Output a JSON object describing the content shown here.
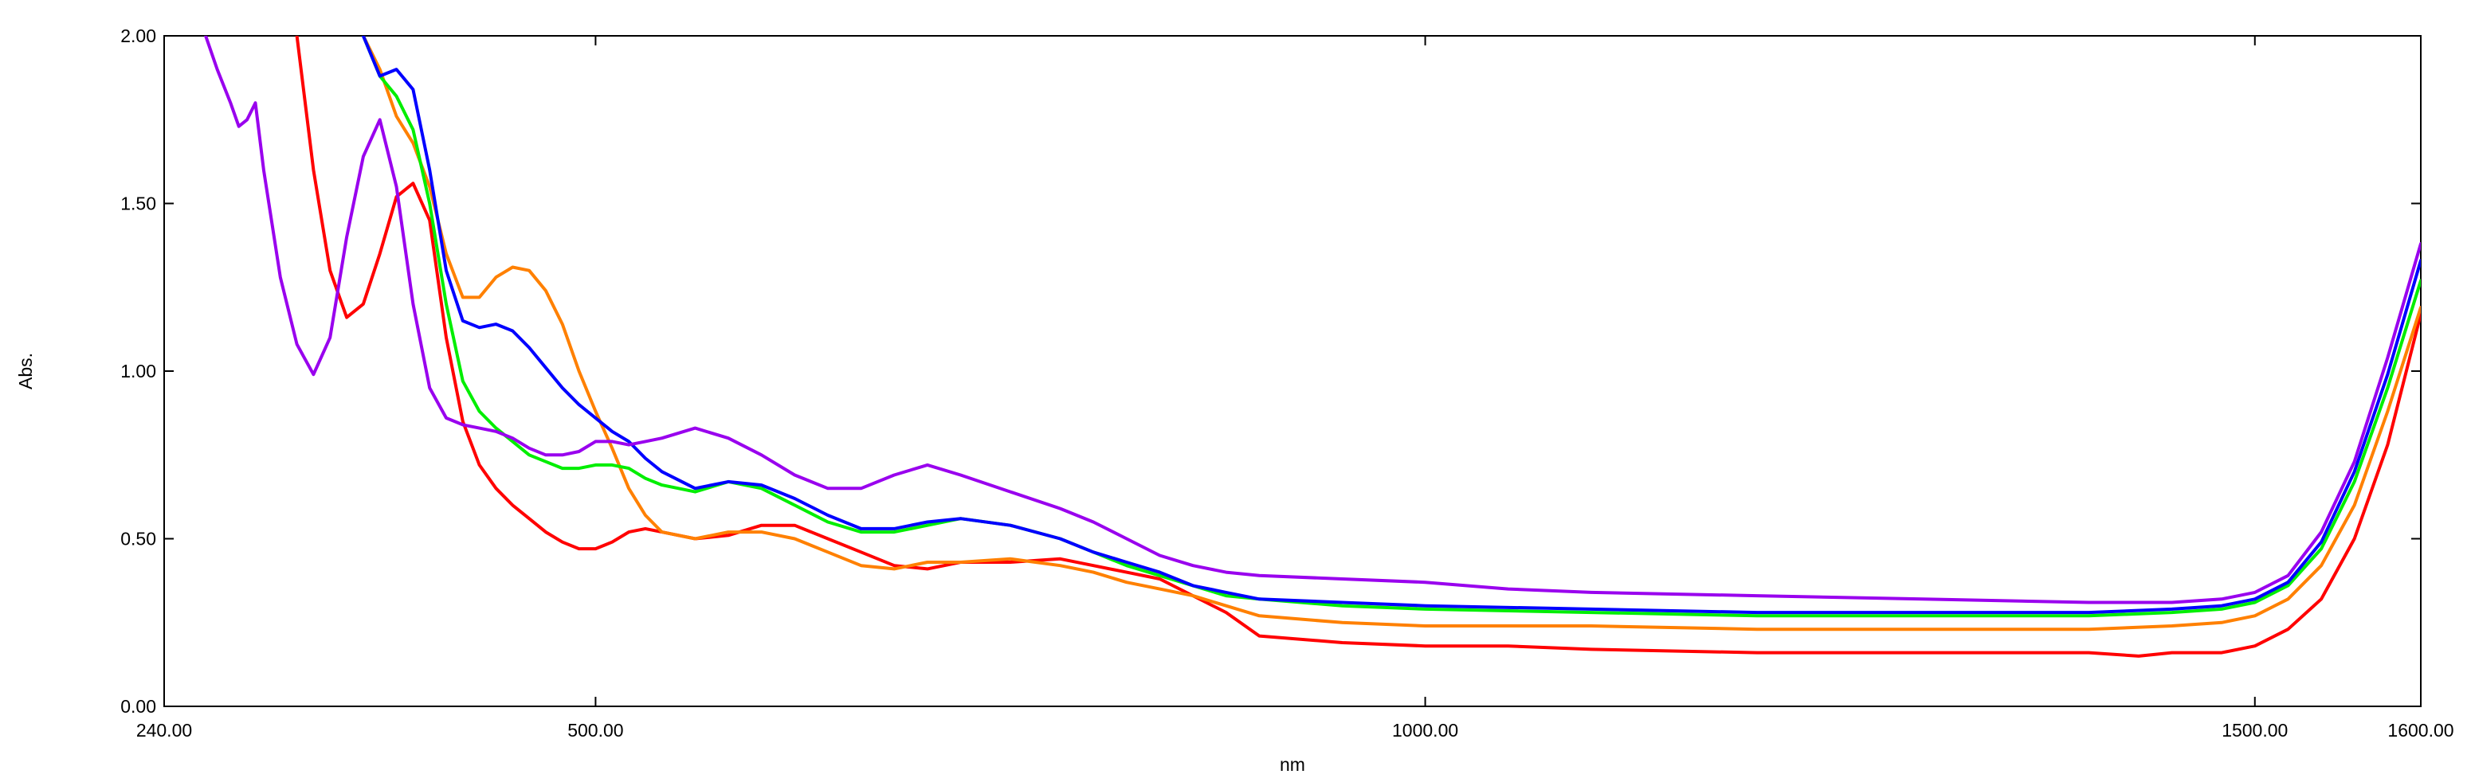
{
  "chart_data": {
    "type": "line",
    "title": "",
    "xlabel": "nm",
    "ylabel": "Abs.",
    "xlim": [
      240,
      1600
    ],
    "ylim": [
      0,
      2
    ],
    "grid": false,
    "legend": "none",
    "x_ticks": [
      240,
      500,
      1000,
      1500,
      1600
    ],
    "x_tick_labels": [
      "240.00",
      "500.00",
      "1000.00",
      "1500.00",
      "1600.00"
    ],
    "y_ticks": [
      0,
      0.5,
      1,
      1.5,
      2
    ],
    "y_tick_labels": [
      "0.00",
      "0.50",
      "1.00",
      "1.50",
      "2.00"
    ],
    "series": [
      {
        "color": "#ff0000",
        "x": [
          320,
          330,
          340,
          350,
          360,
          370,
          380,
          390,
          400,
          410,
          420,
          430,
          440,
          450,
          460,
          470,
          480,
          490,
          500,
          510,
          520,
          530,
          540,
          560,
          580,
          600,
          620,
          640,
          660,
          680,
          700,
          720,
          750,
          780,
          800,
          820,
          840,
          860,
          880,
          900,
          950,
          1000,
          1050,
          1100,
          1200,
          1300,
          1400,
          1430,
          1450,
          1480,
          1500,
          1520,
          1540,
          1560,
          1580,
          1600
        ],
        "y": [
          2.0,
          1.6,
          1.3,
          1.16,
          1.2,
          1.35,
          1.52,
          1.56,
          1.45,
          1.1,
          0.85,
          0.72,
          0.65,
          0.6,
          0.56,
          0.52,
          0.49,
          0.47,
          0.47,
          0.49,
          0.52,
          0.53,
          0.52,
          0.5,
          0.51,
          0.54,
          0.54,
          0.5,
          0.46,
          0.42,
          0.41,
          0.43,
          0.43,
          0.44,
          0.42,
          0.4,
          0.38,
          0.33,
          0.28,
          0.21,
          0.19,
          0.18,
          0.18,
          0.17,
          0.16,
          0.16,
          0.16,
          0.15,
          0.16,
          0.16,
          0.18,
          0.23,
          0.32,
          0.5,
          0.78,
          1.17
        ]
      },
      {
        "color": "#ff8000",
        "x": [
          360,
          370,
          380,
          390,
          400,
          410,
          420,
          430,
          440,
          450,
          460,
          470,
          480,
          490,
          500,
          510,
          520,
          530,
          540,
          560,
          580,
          600,
          620,
          640,
          660,
          680,
          700,
          720,
          750,
          780,
          800,
          820,
          840,
          860,
          880,
          900,
          950,
          1000,
          1100,
          1200,
          1300,
          1400,
          1450,
          1480,
          1500,
          1520,
          1540,
          1560,
          1580,
          1600
        ],
        "y": [
          2.0,
          1.9,
          1.76,
          1.68,
          1.55,
          1.35,
          1.22,
          1.22,
          1.28,
          1.31,
          1.3,
          1.24,
          1.14,
          1.0,
          0.88,
          0.77,
          0.65,
          0.57,
          0.52,
          0.5,
          0.52,
          0.52,
          0.5,
          0.46,
          0.42,
          0.41,
          0.43,
          0.43,
          0.44,
          0.42,
          0.4,
          0.37,
          0.35,
          0.33,
          0.3,
          0.27,
          0.25,
          0.24,
          0.24,
          0.23,
          0.23,
          0.23,
          0.24,
          0.25,
          0.27,
          0.32,
          0.42,
          0.6,
          0.88,
          1.19
        ]
      },
      {
        "color": "#00ee00",
        "x": [
          360,
          370,
          380,
          390,
          400,
          410,
          420,
          430,
          440,
          450,
          460,
          470,
          480,
          490,
          500,
          510,
          520,
          530,
          540,
          560,
          580,
          600,
          620,
          640,
          660,
          680,
          700,
          720,
          750,
          780,
          800,
          820,
          840,
          860,
          880,
          900,
          950,
          1000,
          1100,
          1200,
          1300,
          1400,
          1450,
          1480,
          1500,
          1520,
          1540,
          1560,
          1580,
          1600
        ],
        "y": [
          2.0,
          1.88,
          1.82,
          1.72,
          1.5,
          1.2,
          0.97,
          0.88,
          0.83,
          0.79,
          0.75,
          0.73,
          0.71,
          0.71,
          0.72,
          0.72,
          0.71,
          0.68,
          0.66,
          0.64,
          0.67,
          0.65,
          0.6,
          0.55,
          0.52,
          0.52,
          0.54,
          0.56,
          0.54,
          0.5,
          0.46,
          0.42,
          0.39,
          0.36,
          0.33,
          0.32,
          0.3,
          0.29,
          0.28,
          0.27,
          0.27,
          0.27,
          0.28,
          0.29,
          0.31,
          0.36,
          0.47,
          0.67,
          0.95,
          1.27
        ]
      },
      {
        "color": "#0000ff",
        "x": [
          360,
          370,
          380,
          390,
          400,
          410,
          420,
          430,
          440,
          450,
          460,
          470,
          480,
          490,
          500,
          510,
          520,
          530,
          540,
          560,
          580,
          600,
          620,
          640,
          660,
          680,
          700,
          720,
          750,
          780,
          800,
          820,
          840,
          860,
          880,
          900,
          950,
          1000,
          1100,
          1200,
          1300,
          1400,
          1450,
          1480,
          1500,
          1520,
          1540,
          1560,
          1580,
          1600
        ],
        "y": [
          2.0,
          1.88,
          1.9,
          1.84,
          1.6,
          1.3,
          1.15,
          1.13,
          1.14,
          1.12,
          1.07,
          1.01,
          0.95,
          0.9,
          0.86,
          0.82,
          0.79,
          0.74,
          0.7,
          0.65,
          0.67,
          0.66,
          0.62,
          0.57,
          0.53,
          0.53,
          0.55,
          0.56,
          0.54,
          0.5,
          0.46,
          0.43,
          0.4,
          0.36,
          0.34,
          0.32,
          0.31,
          0.3,
          0.29,
          0.28,
          0.28,
          0.28,
          0.29,
          0.3,
          0.32,
          0.37,
          0.49,
          0.7,
          0.99,
          1.33
        ]
      },
      {
        "color": "#9900ee",
        "x": [
          265,
          272,
          280,
          285,
          290,
          295,
          300,
          310,
          320,
          330,
          340,
          350,
          360,
          370,
          380,
          390,
          400,
          410,
          420,
          430,
          440,
          450,
          460,
          470,
          480,
          490,
          500,
          510,
          520,
          530,
          540,
          560,
          580,
          600,
          620,
          640,
          660,
          680,
          700,
          720,
          750,
          780,
          800,
          820,
          840,
          860,
          880,
          900,
          950,
          1000,
          1050,
          1100,
          1200,
          1300,
          1400,
          1450,
          1480,
          1500,
          1520,
          1540,
          1560,
          1580,
          1600
        ],
        "y": [
          2.0,
          1.9,
          1.8,
          1.73,
          1.75,
          1.8,
          1.6,
          1.28,
          1.08,
          0.99,
          1.1,
          1.4,
          1.64,
          1.75,
          1.55,
          1.2,
          0.95,
          0.86,
          0.84,
          0.83,
          0.82,
          0.8,
          0.77,
          0.75,
          0.75,
          0.76,
          0.79,
          0.79,
          0.78,
          0.79,
          0.8,
          0.83,
          0.8,
          0.75,
          0.69,
          0.65,
          0.65,
          0.69,
          0.72,
          0.69,
          0.64,
          0.59,
          0.55,
          0.5,
          0.45,
          0.42,
          0.4,
          0.39,
          0.38,
          0.37,
          0.35,
          0.34,
          0.33,
          0.32,
          0.31,
          0.31,
          0.32,
          0.34,
          0.39,
          0.52,
          0.73,
          1.04,
          1.38
        ]
      }
    ]
  }
}
